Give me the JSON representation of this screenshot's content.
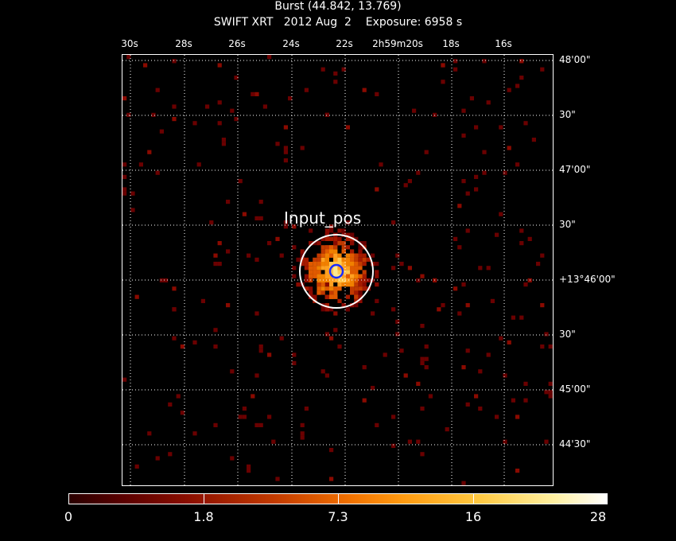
{
  "header": {
    "title": "Burst (44.842, 13.769)",
    "subtitle": "SWIFT XRT   2012 Aug  2    Exposure: 6958 s"
  },
  "axes": {
    "top_labels": [
      "30s",
      "28s",
      "26s",
      "24s",
      "22s",
      "2h59m20s",
      "18s",
      "16s"
    ],
    "right_labels": [
      "48'00\"",
      "30\"",
      "47'00\"",
      "30\"",
      "+13°46'00\"",
      "30\"",
      "45'00\"",
      "44'30\""
    ]
  },
  "annotation": {
    "label": "Input_pos"
  },
  "colorbar": {
    "labels": [
      "0",
      "1.8",
      "7.3",
      "16",
      "28"
    ]
  },
  "colors": {
    "background": "#000000",
    "grid": "#ffffff",
    "marker_inner": "#1a2cff",
    "marker_outer": "#ffffff"
  }
}
